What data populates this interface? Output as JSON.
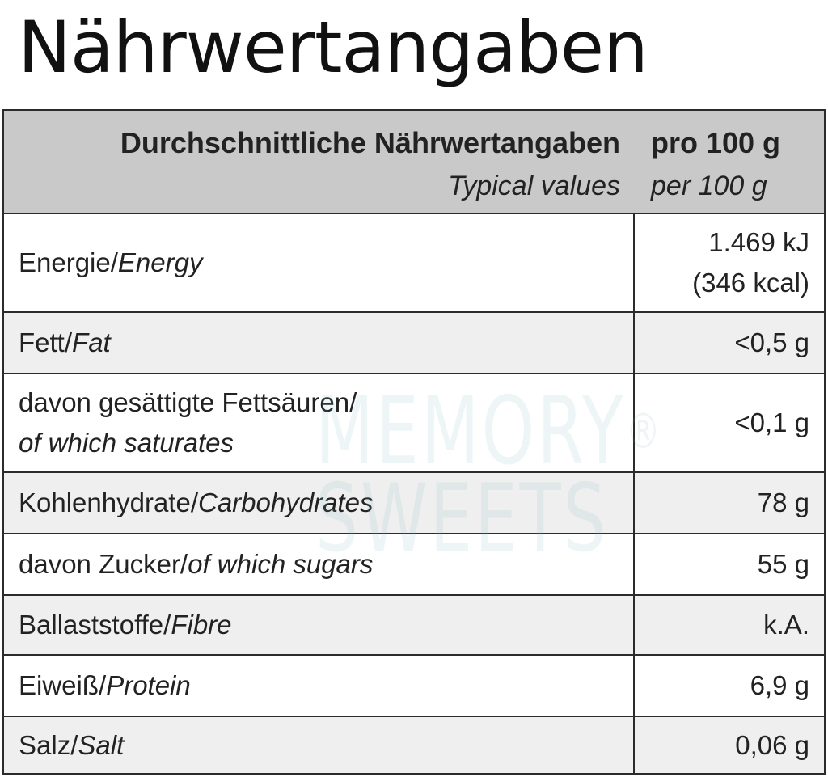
{
  "title": "Nährwertangaben",
  "header": {
    "label": "Durchschnittliche Nährwertangaben",
    "value": "pro 100 g",
    "label_en": "Typical values",
    "value_en": "per 100 g"
  },
  "rows": [
    {
      "label_de": "Energie/",
      "label_en": "Energy",
      "value": "1.469 kJ",
      "value2": "(346 kcal)"
    },
    {
      "label_de": "Fett/",
      "label_en": "Fat",
      "value": "<0,5 g"
    },
    {
      "label_de": "davon gesättigte Fettsäuren/",
      "label_en": "of which saturates",
      "value": "<0,1 g"
    },
    {
      "label_de": "Kohlenhydrate/",
      "label_en": "Carbohydrates",
      "value": "78 g"
    },
    {
      "label_de": "davon Zucker/",
      "label_en": "of which sugars",
      "value": "55 g"
    },
    {
      "label_de": "Ballaststoffe/",
      "label_en": "Fibre",
      "value": "k.A."
    },
    {
      "label_de": "Eiweiß/",
      "label_en": "Protein",
      "value": "6,9 g"
    },
    {
      "label_de": "Salz/",
      "label_en": "Salt",
      "value": "0,06 g"
    }
  ],
  "watermark": {
    "line1": "MEMORY",
    "mark": "®",
    "line2": "SWEETS"
  },
  "colors": {
    "header_bg": "#c9c9c9",
    "alt_row_bg": "#efefef",
    "border": "#2b2b2b"
  }
}
